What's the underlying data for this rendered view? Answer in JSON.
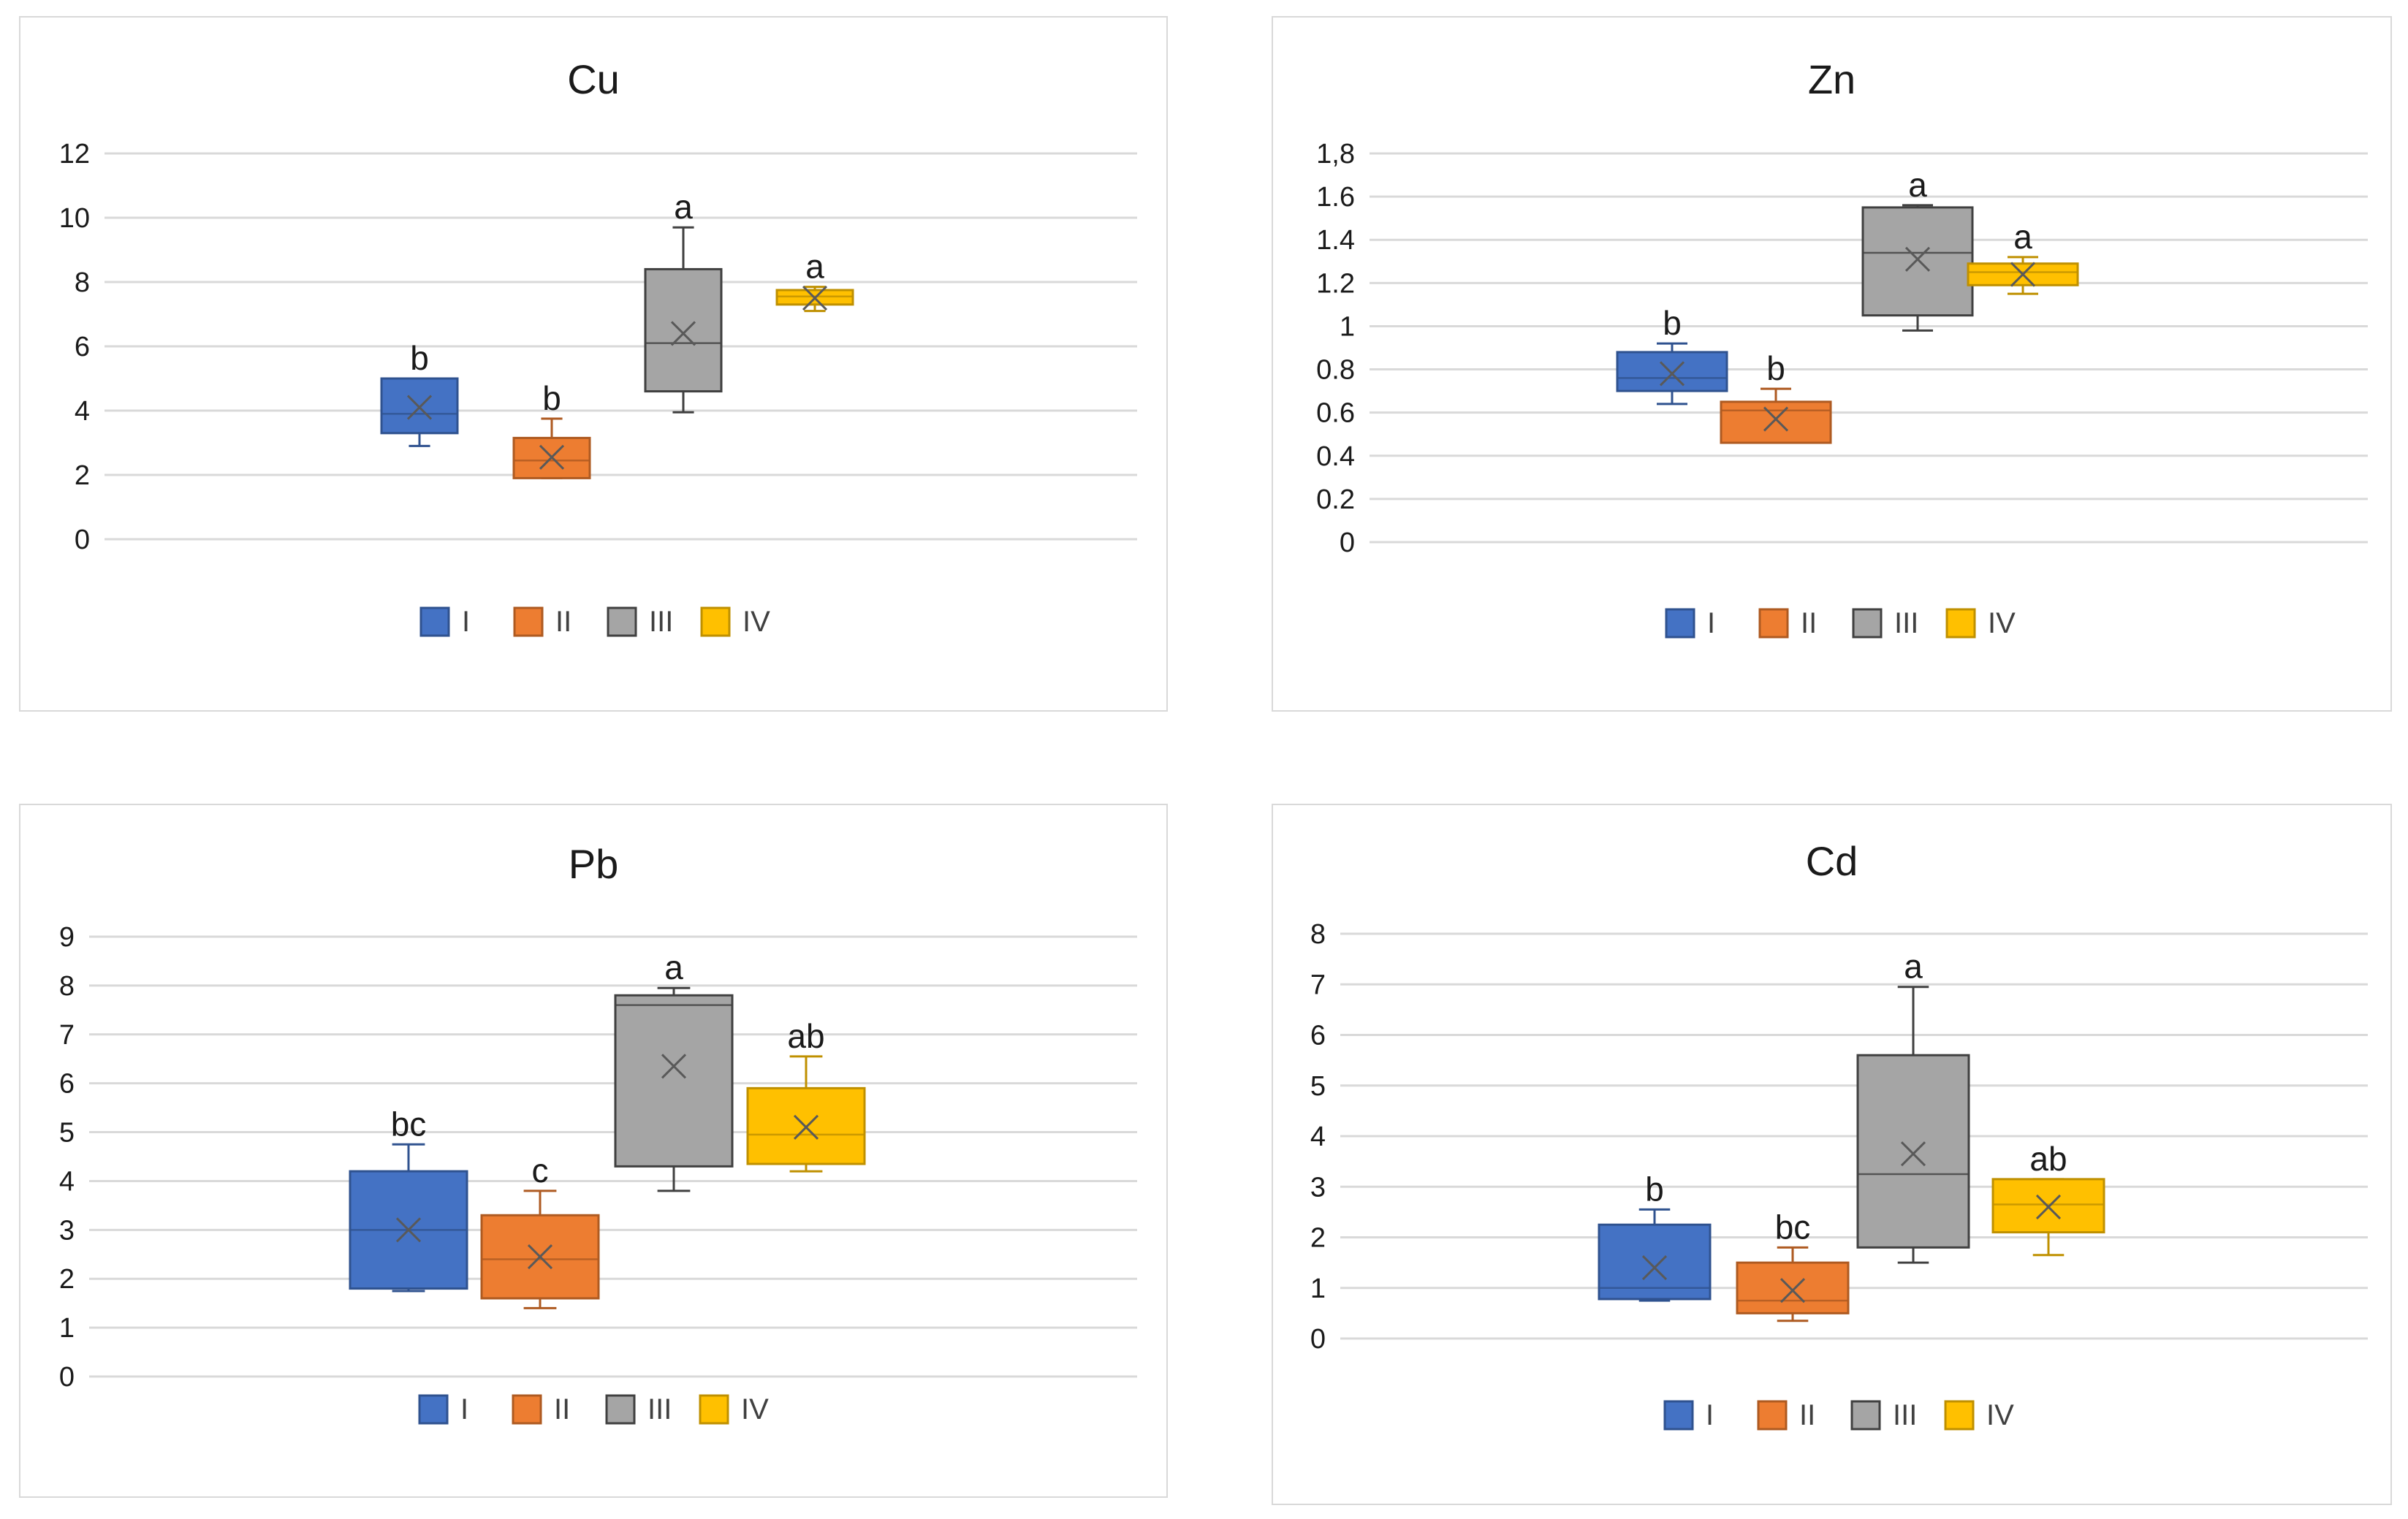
{
  "chart_data": [
    {
      "type": "box",
      "title": "Cu",
      "ylim": [
        0,
        12
      ],
      "yticks": [
        "0",
        "2",
        "4",
        "6",
        "8",
        "10",
        "12"
      ],
      "tick_values": [
        0,
        2,
        4,
        6,
        8,
        10,
        12
      ],
      "series": [
        {
          "name": "I",
          "min": 2.9,
          "q1": 3.3,
          "median": 3.9,
          "q3": 5.0,
          "max": 5.0,
          "mean": 4.1,
          "letter": "b",
          "color": "#4472c4",
          "border": "#2f528f"
        },
        {
          "name": "II",
          "min": 1.9,
          "q1": 1.9,
          "median": 2.45,
          "q3": 3.15,
          "max": 3.75,
          "mean": 2.55,
          "letter": "b",
          "color": "#ed7d31",
          "border": "#ae5a21"
        },
        {
          "name": "III",
          "min": 3.95,
          "q1": 4.6,
          "median": 6.1,
          "q3": 8.4,
          "max": 9.7,
          "mean": 6.4,
          "letter": "a",
          "color": "#a5a5a5",
          "border": "#404040"
        },
        {
          "name": "IV",
          "min": 7.1,
          "q1": 7.3,
          "median": 7.55,
          "q3": 7.75,
          "max": 7.85,
          "mean": 7.5,
          "letter": "a",
          "color": "#ffc000",
          "border": "#bf9000"
        }
      ]
    },
    {
      "type": "box",
      "title": "Zn",
      "ylim": [
        0,
        1.8
      ],
      "yticks": [
        "0",
        "0.2",
        "0.4",
        "0.6",
        "0.8",
        "1",
        "1.2",
        "1.4",
        "1.6",
        "1,8"
      ],
      "tick_values": [
        0,
        0.2,
        0.4,
        0.6,
        0.8,
        1.0,
        1.2,
        1.4,
        1.6,
        1.8
      ],
      "series": [
        {
          "name": "I",
          "min": 0.64,
          "q1": 0.7,
          "median": 0.76,
          "q3": 0.88,
          "max": 0.92,
          "mean": 0.78,
          "letter": "b",
          "color": "#4472c4",
          "border": "#2f528f"
        },
        {
          "name": "II",
          "min": 0.46,
          "q1": 0.46,
          "median": 0.61,
          "q3": 0.65,
          "max": 0.71,
          "mean": 0.57,
          "letter": "b",
          "color": "#ed7d31",
          "border": "#ae5a21"
        },
        {
          "name": "III",
          "min": 0.98,
          "q1": 1.05,
          "median": 1.34,
          "q3": 1.55,
          "max": 1.56,
          "mean": 1.31,
          "letter": "a",
          "color": "#a5a5a5",
          "border": "#404040"
        },
        {
          "name": "IV",
          "min": 1.15,
          "q1": 1.19,
          "median": 1.25,
          "q3": 1.29,
          "max": 1.32,
          "mean": 1.24,
          "letter": "a",
          "color": "#ffc000",
          "border": "#bf9000"
        }
      ]
    },
    {
      "type": "box",
      "title": "Pb",
      "ylim": [
        0,
        9
      ],
      "yticks": [
        "0",
        "1",
        "2",
        "3",
        "4",
        "5",
        "6",
        "7",
        "8",
        "9"
      ],
      "tick_values": [
        0,
        1,
        2,
        3,
        4,
        5,
        6,
        7,
        8,
        9
      ],
      "series": [
        {
          "name": "I",
          "min": 1.75,
          "q1": 1.8,
          "median": 3.0,
          "q3": 4.2,
          "max": 4.75,
          "mean": 3.0,
          "letter": "bc",
          "color": "#4472c4",
          "border": "#2f528f"
        },
        {
          "name": "II",
          "min": 1.4,
          "q1": 1.6,
          "median": 2.4,
          "q3": 3.3,
          "max": 3.8,
          "mean": 2.45,
          "letter": "c",
          "color": "#ed7d31",
          "border": "#ae5a21"
        },
        {
          "name": "III",
          "min": 3.8,
          "q1": 4.3,
          "median": 7.6,
          "q3": 7.8,
          "max": 7.95,
          "mean": 6.35,
          "letter": "a",
          "color": "#a5a5a5",
          "border": "#404040"
        },
        {
          "name": "IV",
          "min": 4.2,
          "q1": 4.35,
          "median": 4.95,
          "q3": 5.9,
          "max": 6.55,
          "mean": 5.1,
          "letter": "ab",
          "color": "#ffc000",
          "border": "#bf9000"
        }
      ]
    },
    {
      "type": "box",
      "title": "Cd",
      "ylim": [
        0,
        8
      ],
      "yticks": [
        "0",
        "1",
        "2",
        "3",
        "4",
        "5",
        "6",
        "7",
        "8"
      ],
      "tick_values": [
        0,
        1,
        2,
        3,
        4,
        5,
        6,
        7,
        8
      ],
      "series": [
        {
          "name": "I",
          "min": 0.75,
          "q1": 0.78,
          "median": 1.0,
          "q3": 2.25,
          "max": 2.55,
          "mean": 1.4,
          "letter": "b",
          "color": "#4472c4",
          "border": "#2f528f"
        },
        {
          "name": "II",
          "min": 0.35,
          "q1": 0.5,
          "median": 0.75,
          "q3": 1.5,
          "max": 1.8,
          "mean": 0.95,
          "letter": "bc",
          "color": "#ed7d31",
          "border": "#ae5a21"
        },
        {
          "name": "III",
          "min": 1.5,
          "q1": 1.8,
          "median": 3.25,
          "q3": 5.6,
          "max": 6.95,
          "mean": 3.65,
          "letter": "a",
          "color": "#a5a5a5",
          "border": "#404040"
        },
        {
          "name": "IV",
          "min": 1.65,
          "q1": 2.1,
          "median": 2.65,
          "q3": 3.15,
          "max": 3.15,
          "mean": 2.6,
          "letter": "ab",
          "color": "#ffc000",
          "border": "#bf9000"
        }
      ]
    }
  ]
}
